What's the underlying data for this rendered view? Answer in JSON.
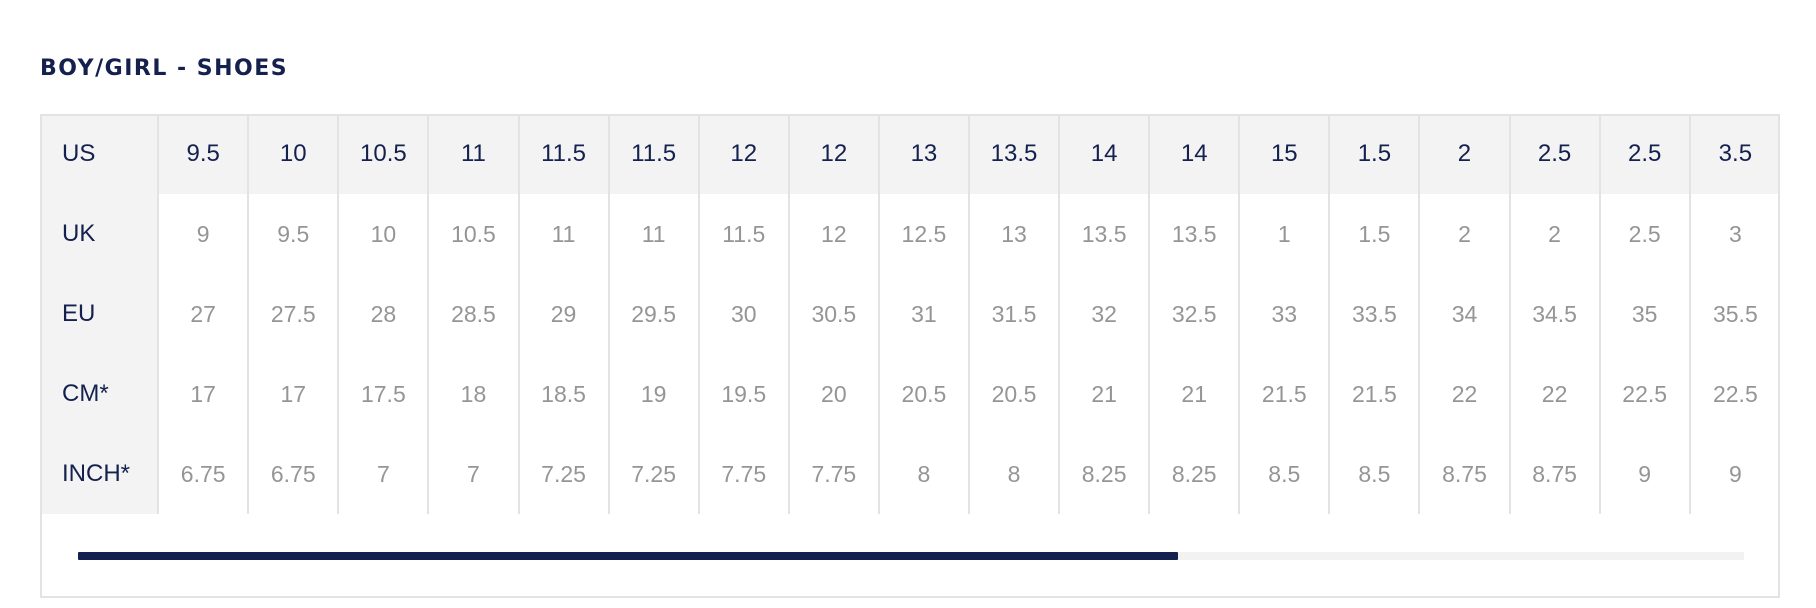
{
  "section": {
    "title": "BOY/GIRL - SHOES"
  },
  "size_chart": {
    "rows": [
      {
        "label": "US",
        "values": [
          "9.5",
          "10",
          "10.5",
          "11",
          "11.5",
          "11.5",
          "12",
          "12",
          "13",
          "13.5",
          "14",
          "14",
          "15",
          "1.5",
          "2",
          "2.5",
          "2.5",
          "3.5"
        ]
      },
      {
        "label": "UK",
        "values": [
          "9",
          "9.5",
          "10",
          "10.5",
          "11",
          "11",
          "11.5",
          "12",
          "12.5",
          "13",
          "13.5",
          "13.5",
          "1",
          "1.5",
          "2",
          "2",
          "2.5",
          "3"
        ]
      },
      {
        "label": "EU",
        "values": [
          "27",
          "27.5",
          "28",
          "28.5",
          "29",
          "29.5",
          "30",
          "30.5",
          "31",
          "31.5",
          "32",
          "32.5",
          "33",
          "33.5",
          "34",
          "34.5",
          "35",
          "35.5"
        ]
      },
      {
        "label": "CM*",
        "values": [
          "17",
          "17",
          "17.5",
          "18",
          "18.5",
          "19",
          "19.5",
          "20",
          "20.5",
          "20.5",
          "21",
          "21",
          "21.5",
          "21.5",
          "22",
          "22",
          "22.5",
          "22.5"
        ]
      },
      {
        "label": "INCH*",
        "values": [
          "6.75",
          "6.75",
          "7",
          "7",
          "7.25",
          "7.25",
          "7.75",
          "7.75",
          "8",
          "8",
          "8.25",
          "8.25",
          "8.5",
          "8.5",
          "8.75",
          "8.75",
          "9",
          "9"
        ]
      }
    ]
  },
  "scrollbar": {
    "position_fraction": 0.66,
    "track_color": "#f2f2f2",
    "thumb_color": "#14204d"
  },
  "colors": {
    "heading": "#14204d",
    "value_text": "#959595",
    "header_background": "#f3f3f3",
    "border": "#e3e3e3"
  }
}
